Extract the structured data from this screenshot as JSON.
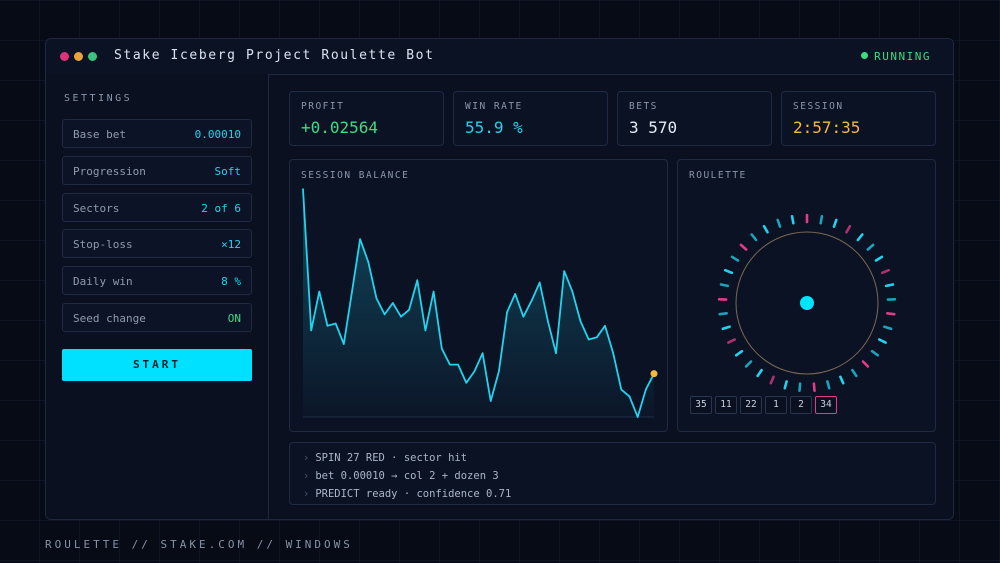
{
  "window": {
    "title": "Stake Iceberg Project Roulette Bot",
    "status": "RUNNING",
    "dots": [
      "#e0327a",
      "#e8a33a",
      "#3cc37a"
    ]
  },
  "settings": {
    "heading": "SETTINGS",
    "items": [
      {
        "label": "Base bet",
        "value": "0.00010"
      },
      {
        "label": "Progression",
        "value": "Soft"
      },
      {
        "label": "Sectors",
        "value": "2 of 6"
      },
      {
        "label": "Stop-loss",
        "value": "×12"
      },
      {
        "label": "Daily win",
        "value": "8 %"
      },
      {
        "label": "Seed change",
        "value": "ON"
      }
    ],
    "start_label": "START"
  },
  "stats": [
    {
      "label": "PROFIT",
      "value": "+0.02564",
      "color": "#3ddc84"
    },
    {
      "label": "WIN RATE",
      "value": "55.9 %",
      "color": "#22d3ee"
    },
    {
      "label": "BETS",
      "value": "3 570",
      "color": "#e6ecf5"
    },
    {
      "label": "SESSION",
      "value": "2:57:35",
      "color": "#f5b942"
    }
  ],
  "chart": {
    "label": "SESSION BALANCE"
  },
  "chart_data": {
    "type": "area",
    "title": "SESSION BALANCE",
    "xlabel": "",
    "ylabel": "",
    "grid": false,
    "values": [
      100,
      38,
      55,
      40,
      41,
      32,
      55,
      78,
      68,
      52,
      45,
      50,
      44,
      47,
      60,
      38,
      55,
      30,
      23,
      23,
      15,
      20,
      28,
      7,
      20,
      46,
      54,
      44,
      51,
      59,
      42,
      28,
      64,
      55,
      42,
      34,
      35,
      40,
      28,
      12,
      9,
      0,
      12,
      19
    ],
    "ylim": [
      0,
      100
    ]
  },
  "roulette": {
    "label": "ROULETTE",
    "recent": [
      "35",
      "11",
      "22",
      "1",
      "2",
      "34"
    ],
    "active_index": 5,
    "colors": {
      "cyan": "#22d3ee",
      "pink": "#e33b8a",
      "ball": "#00e5ff"
    }
  },
  "log": [
    "SPIN 27 RED · sector hit",
    "bet 0.00010 → col 2 + dozen 3",
    "PREDICT ready · confidence 0.71"
  ],
  "footer": "ROULETTE // STAKE.COM // WINDOWS"
}
